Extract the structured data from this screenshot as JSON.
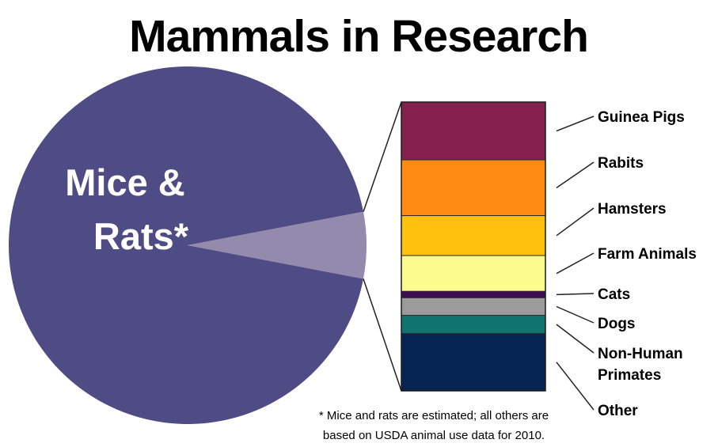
{
  "chart_data": {
    "type": "pie",
    "title": "Mammals in Research",
    "main_slice": {
      "label_lines": [
        "Mice &",
        "Rats*"
      ],
      "label": "Mice & Rats*",
      "share": 0.94,
      "color": "#4f4c85"
    },
    "others_slice": {
      "share": 0.06,
      "color": "#948aae"
    },
    "breakdown": {
      "type": "stacked-bar",
      "categories": [
        {
          "name": "Guinea Pigs",
          "label_lines": [
            "Guinea Pigs"
          ],
          "value": 20.0,
          "color": "#84214f"
        },
        {
          "name": "Rabits",
          "label_lines": [
            "Rabits"
          ],
          "value": 19.3,
          "color": "#ff8a12"
        },
        {
          "name": "Hamsters",
          "label_lines": [
            "Hamsters"
          ],
          "value": 13.8,
          "color": "#ffc10e"
        },
        {
          "name": "Farm Animals",
          "label_lines": [
            "Farm Animals"
          ],
          "value": 12.4,
          "color": "#fdfd8f"
        },
        {
          "name": "Cats",
          "label_lines": [
            "Cats"
          ],
          "value": 2.2,
          "color": "#3f0b55"
        },
        {
          "name": "Dogs",
          "label_lines": [
            "Dogs"
          ],
          "value": 6.1,
          "color": "#9b9b9b"
        },
        {
          "name": "Non-Human Primates",
          "label_lines": [
            "Non-Human",
            "Primates"
          ],
          "value": 6.3,
          "color": "#127470"
        },
        {
          "name": "Other",
          "label_lines": [
            "Other"
          ],
          "value": 19.8,
          "color": "#062553"
        }
      ]
    },
    "footnote_lines": [
      "* Mice and rats are estimated; all others are",
      "based on USDA animal use data for 2010."
    ],
    "connector_color": "#222222"
  }
}
